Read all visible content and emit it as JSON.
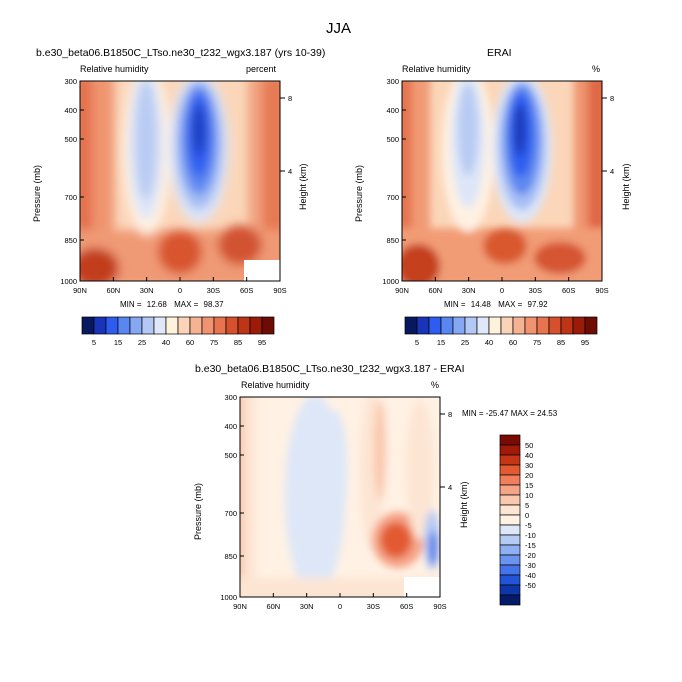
{
  "page": {
    "title": "JJA"
  },
  "pressure_ticks": [
    "300",
    "400",
    "500",
    "700",
    "850",
    "1000"
  ],
  "height_ticks": [
    "8",
    "4"
  ],
  "lat_ticks": [
    "90N",
    "60N",
    "30N",
    "0",
    "30S",
    "60S",
    "90S"
  ],
  "chart_data": [
    {
      "type": "heatmap",
      "title": "b.e30_beta06.B1850C_LTso.ne30_t232_wgx3.187 (yrs 10-39)",
      "left_label": "Relative humidity",
      "right_label": "percent",
      "ylabel": "Pressure (mb)",
      "ylabel_right": "Height (km)",
      "stats": {
        "min_label": "MIN =",
        "min": "12.68",
        "max_label": "MAX =",
        "max": "98.37"
      },
      "colorbar_labels": [
        "5",
        "15",
        "25",
        "40",
        "60",
        "75",
        "85",
        "95"
      ],
      "colorbar_colors": [
        "#08185e",
        "#1934b8",
        "#2f5cf0",
        "#5a86f2",
        "#86a8f3",
        "#b3c8f5",
        "#dfe7f8",
        "#fff2dc",
        "#fbd4b8",
        "#f5b394",
        "#f19270",
        "#e8734f",
        "#d6502e",
        "#bd3417",
        "#9c1b08",
        "#6e0c04"
      ]
    },
    {
      "type": "heatmap",
      "title": "ERAI",
      "left_label": "Relative humidity",
      "right_label": "%",
      "ylabel": "Pressure (mb)",
      "ylabel_right": "Height (km)",
      "stats": {
        "min_label": "MIN =",
        "min": "14.48",
        "max_label": "MAX =",
        "max": "97.92"
      },
      "colorbar_labels": [
        "5",
        "15",
        "25",
        "40",
        "60",
        "75",
        "85",
        "95"
      ]
    },
    {
      "type": "heatmap",
      "title": "b.e30_beta06.B1850C_LTso.ne30_t232_wgx3.187 - ERAI",
      "left_label": "Relative humidity",
      "right_label": "%",
      "ylabel": "Pressure (mb)",
      "ylabel_right": "Height (km)",
      "stats_line": "MIN = -25.47   MAX =  24.53",
      "colorbar_labels": [
        "50",
        "40",
        "30",
        "20",
        "15",
        "10",
        "5",
        "0",
        "-5",
        "-10",
        "-15",
        "-20",
        "-30",
        "-40",
        "-50"
      ],
      "colorbar_colors": [
        "#7a0a04",
        "#a11908",
        "#c63515",
        "#e35a32",
        "#f17f5d",
        "#f5a487",
        "#f9c8ae",
        "#fde5d3",
        "#fff1e4",
        "#dde7f8",
        "#b6cbf4",
        "#8fb0f2",
        "#6a94f0",
        "#4574ea",
        "#2354d8",
        "#0f36a8",
        "#061a6a"
      ]
    }
  ]
}
